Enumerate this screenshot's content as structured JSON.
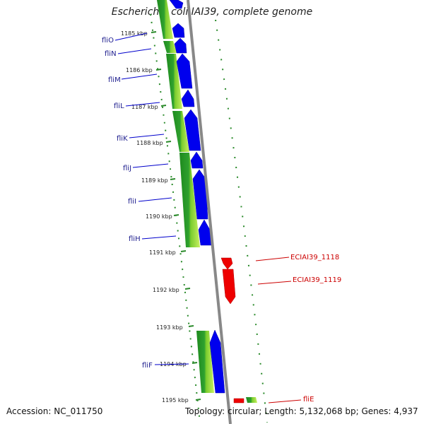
{
  "title": "Escherichia coli IAI39, complete genome",
  "footer": {
    "accession": "Accession: NC_011750",
    "topology": "Topology: circular; Length: 5,132,068 bp; Genes: 4,937"
  },
  "ticks": [
    "1185 kbp",
    "1186 kbp",
    "1187 kbp",
    "1188 kbp",
    "1189 kbp",
    "1190 kbp",
    "1191 kbp",
    "1192 kbp",
    "1193 kbp",
    "1194 kbp",
    "1195 kbp"
  ],
  "forward_genes": [
    "fliO",
    "fliN",
    "fliM",
    "fliL",
    "fliK",
    "fliJ",
    "fliI",
    "fliH",
    "fliF"
  ],
  "reverse_genes": [
    "ECIAI39_1118",
    "ECIAI39_1119",
    "fliE"
  ],
  "colors": {
    "forward_cds": "#0000ee",
    "reverse_cds": "#ee0000",
    "gc_dark": "#1e8a1e",
    "gc_mid": "#5cbf2a",
    "gc_light": "#c8f060",
    "backbone": "#888888",
    "tick_dots": "#2a8a2a",
    "label_blue": "#1a1a8c",
    "label_red": "#cc0000"
  }
}
